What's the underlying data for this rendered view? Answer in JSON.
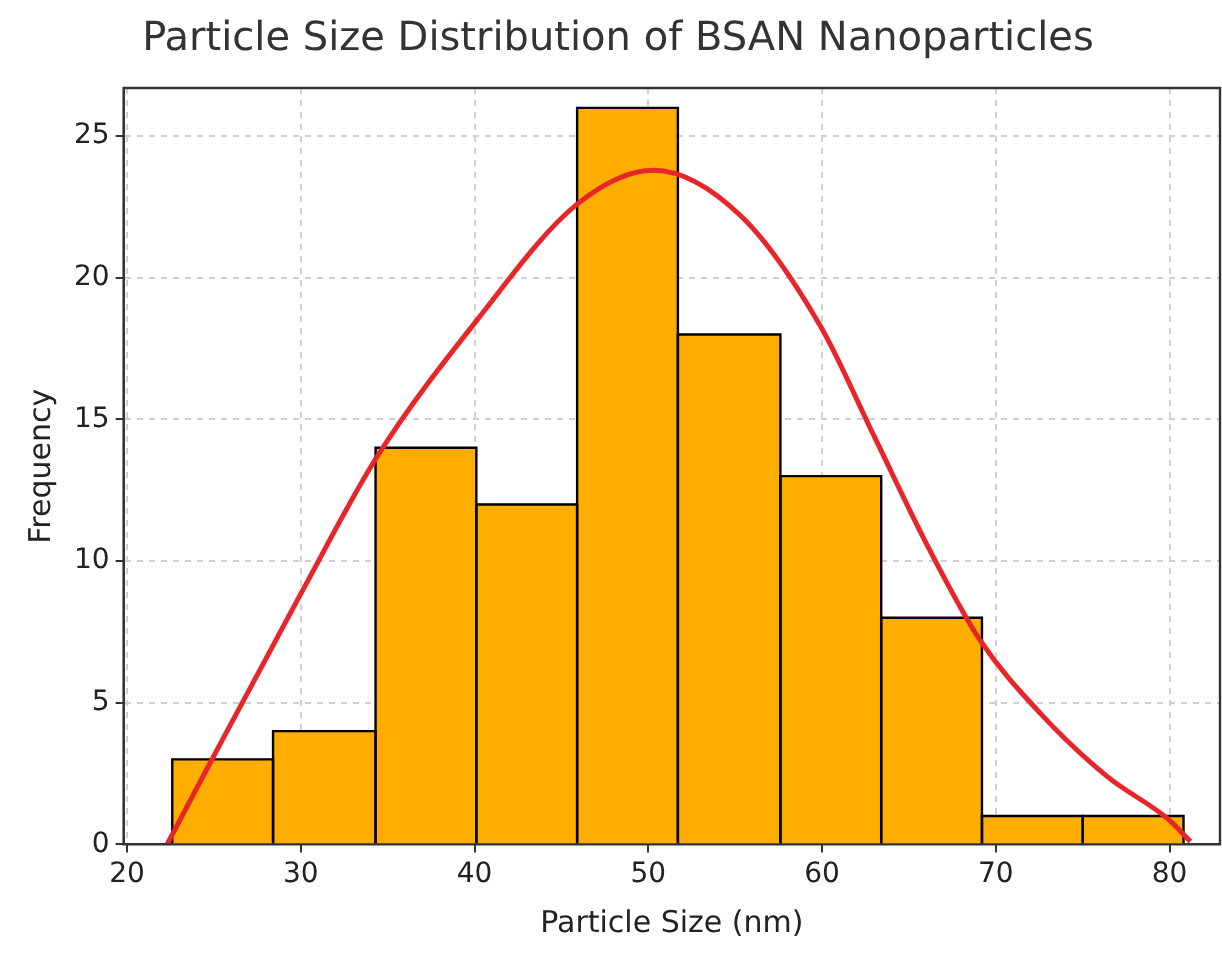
{
  "chart_data": {
    "type": "histogram",
    "title": "Particle Size Distribution of BSAN Nanoparticles",
    "xlabel": "Particle Size (nm)",
    "ylabel": "Frequency",
    "bins": [
      22.6,
      28.4,
      34.3,
      40.1,
      45.9,
      51.7,
      57.6,
      63.4,
      69.2,
      75.0,
      80.8
    ],
    "values": [
      3,
      4,
      14,
      12,
      26,
      18,
      13,
      8,
      1,
      1
    ],
    "color": "#ffae00",
    "series": [
      {
        "type": "line",
        "color": "#e8262a",
        "marker": "none",
        "x": [
          22.3,
          24.8,
          30,
          34.4,
          40,
          45.9,
          50.3,
          55.3,
          59.9,
          63.0,
          66.1,
          69.1,
          72.6,
          76.4,
          79.9,
          81.2
        ],
        "values": [
          0,
          2.9,
          8.85,
          13.7,
          18.4,
          22.6,
          23.8,
          22.2,
          18.3,
          14.4,
          10.5,
          7.2,
          4.6,
          2.4,
          0.9,
          0.1
        ]
      }
    ],
    "xlim": [
      19.8,
      82.9
    ],
    "xticks": [
      20,
      30,
      40,
      50,
      60,
      70,
      80
    ],
    "ylim": [
      0,
      26.7
    ],
    "yticks": [
      0,
      5,
      10,
      15,
      20,
      25
    ],
    "grid": true,
    "legend": false
  }
}
